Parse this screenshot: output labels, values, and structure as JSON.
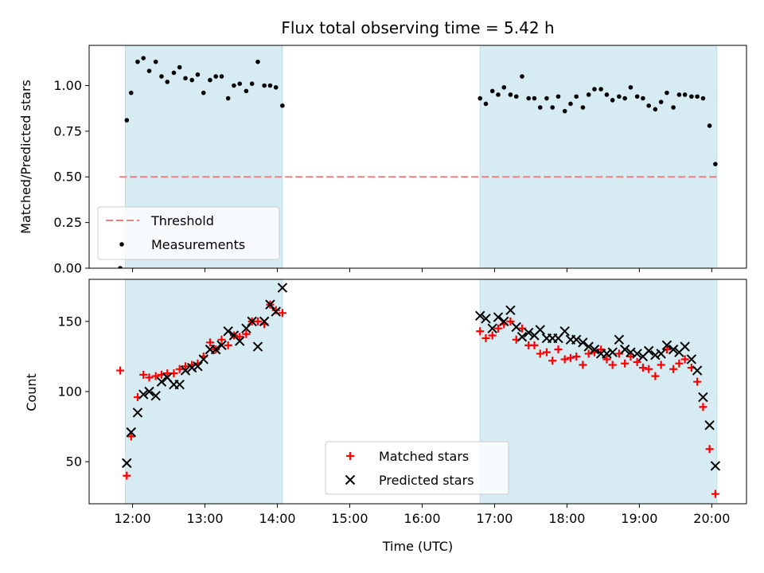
{
  "chart_data": [
    {
      "type": "scatter",
      "title": "Flux total observing time = 5.42 h",
      "xlabel": "",
      "ylabel": "Matched/Predicted stars",
      "xlim": [
        11.4,
        20.48
      ],
      "ylim": [
        0,
        1.22
      ],
      "yticks": [
        0,
        0.25,
        0.5,
        0.75,
        1.0
      ],
      "ytick_labels": [
        "0.00",
        "0.25",
        "0.50",
        "0.75",
        "1.00"
      ],
      "grid": false,
      "shaded_intervals": [
        [
          11.9,
          14.07
        ],
        [
          16.8,
          20.07
        ]
      ],
      "shade_color": "#add8e6",
      "threshold": {
        "name": "Threshold",
        "y": 0.5,
        "x": [
          11.82,
          20.07
        ],
        "color": "#f08080",
        "style": "dashed"
      },
      "legend_position": "lower-left",
      "series": [
        {
          "name": "Measurements",
          "marker": "dot",
          "color": "#000000",
          "points": [
            [
              11.83,
              0.0
            ],
            [
              11.92,
              0.81
            ],
            [
              11.98,
              0.96
            ],
            [
              12.07,
              1.13
            ],
            [
              12.15,
              1.15
            ],
            [
              12.23,
              1.08
            ],
            [
              12.32,
              1.13
            ],
            [
              12.4,
              1.05
            ],
            [
              12.48,
              1.02
            ],
            [
              12.57,
              1.07
            ],
            [
              12.65,
              1.1
            ],
            [
              12.73,
              1.04
            ],
            [
              12.82,
              1.03
            ],
            [
              12.9,
              1.06
            ],
            [
              12.98,
              0.96
            ],
            [
              13.07,
              1.03
            ],
            [
              13.15,
              1.05
            ],
            [
              13.23,
              1.05
            ],
            [
              13.32,
              0.93
            ],
            [
              13.4,
              1.0
            ],
            [
              13.48,
              1.01
            ],
            [
              13.57,
              0.97
            ],
            [
              13.65,
              1.01
            ],
            [
              13.73,
              1.13
            ],
            [
              13.82,
              1.0
            ],
            [
              13.9,
              1.0
            ],
            [
              13.98,
              0.99
            ],
            [
              14.07,
              0.89
            ],
            [
              16.8,
              0.93
            ],
            [
              16.88,
              0.9
            ],
            [
              16.97,
              0.97
            ],
            [
              17.05,
              0.95
            ],
            [
              17.13,
              0.99
            ],
            [
              17.22,
              0.95
            ],
            [
              17.3,
              0.94
            ],
            [
              17.38,
              1.05
            ],
            [
              17.47,
              0.93
            ],
            [
              17.55,
              0.93
            ],
            [
              17.63,
              0.88
            ],
            [
              17.72,
              0.93
            ],
            [
              17.8,
              0.88
            ],
            [
              17.88,
              0.94
            ],
            [
              17.97,
              0.86
            ],
            [
              18.05,
              0.9
            ],
            [
              18.13,
              0.94
            ],
            [
              18.22,
              0.88
            ],
            [
              18.3,
              0.95
            ],
            [
              18.38,
              0.98
            ],
            [
              18.47,
              0.98
            ],
            [
              18.55,
              0.95
            ],
            [
              18.63,
              0.92
            ],
            [
              18.72,
              0.94
            ],
            [
              18.8,
              0.93
            ],
            [
              18.88,
              0.99
            ],
            [
              18.97,
              0.94
            ],
            [
              19.05,
              0.93
            ],
            [
              19.13,
              0.89
            ],
            [
              19.22,
              0.87
            ],
            [
              19.3,
              0.91
            ],
            [
              19.38,
              0.96
            ],
            [
              19.47,
              0.88
            ],
            [
              19.55,
              0.95
            ],
            [
              19.63,
              0.95
            ],
            [
              19.72,
              0.94
            ],
            [
              19.8,
              0.94
            ],
            [
              19.88,
              0.93
            ],
            [
              19.97,
              0.78
            ],
            [
              20.05,
              0.57
            ]
          ]
        }
      ]
    },
    {
      "type": "scatter",
      "title": "",
      "xlabel": "Time (UTC)",
      "ylabel": "Count",
      "xlim": [
        11.4,
        20.48
      ],
      "ylim": [
        20,
        180
      ],
      "xticks": [
        12,
        13,
        14,
        15,
        16,
        17,
        18,
        19,
        20
      ],
      "xtick_labels": [
        "12:00",
        "13:00",
        "14:00",
        "15:00",
        "16:00",
        "17:00",
        "18:00",
        "19:00",
        "20:00"
      ],
      "yticks": [
        50,
        100,
        150
      ],
      "ytick_labels": [
        "50",
        "100",
        "150"
      ],
      "grid": false,
      "shaded_intervals": [
        [
          11.9,
          14.07
        ],
        [
          16.8,
          20.07
        ]
      ],
      "shade_color": "#add8e6",
      "legend_position": "lower-center",
      "series": [
        {
          "name": "Matched stars",
          "marker": "plus",
          "color": "#ff0000",
          "points": [
            [
              11.83,
              115
            ],
            [
              11.92,
              40
            ],
            [
              11.98,
              68
            ],
            [
              12.07,
              96
            ],
            [
              12.15,
              112
            ],
            [
              12.23,
              110
            ],
            [
              12.32,
              111
            ],
            [
              12.4,
              112
            ],
            [
              12.48,
              113
            ],
            [
              12.57,
              113
            ],
            [
              12.65,
              116
            ],
            [
              12.73,
              118
            ],
            [
              12.82,
              119
            ],
            [
              12.9,
              120
            ],
            [
              12.98,
              125
            ],
            [
              13.07,
              135
            ],
            [
              13.15,
              130
            ],
            [
              13.23,
              137
            ],
            [
              13.32,
              133
            ],
            [
              13.4,
              140
            ],
            [
              13.48,
              139
            ],
            [
              13.57,
              141
            ],
            [
              13.65,
              150
            ],
            [
              13.73,
              150
            ],
            [
              13.82,
              148
            ],
            [
              13.9,
              162
            ],
            [
              13.98,
              158
            ],
            [
              14.07,
              156
            ],
            [
              16.8,
              143
            ],
            [
              16.88,
              138
            ],
            [
              16.97,
              140
            ],
            [
              17.05,
              145
            ],
            [
              17.13,
              148
            ],
            [
              17.22,
              150
            ],
            [
              17.3,
              137
            ],
            [
              17.38,
              145
            ],
            [
              17.47,
              133
            ],
            [
              17.55,
              133
            ],
            [
              17.63,
              127
            ],
            [
              17.72,
              128
            ],
            [
              17.8,
              122
            ],
            [
              17.88,
              130
            ],
            [
              17.97,
              123
            ],
            [
              18.05,
              124
            ],
            [
              18.13,
              125
            ],
            [
              18.22,
              119
            ],
            [
              18.3,
              127
            ],
            [
              18.38,
              128
            ],
            [
              18.47,
              130
            ],
            [
              18.55,
              123
            ],
            [
              18.63,
              119
            ],
            [
              18.72,
              127
            ],
            [
              18.8,
              120
            ],
            [
              18.88,
              125
            ],
            [
              18.97,
              121
            ],
            [
              19.05,
              117
            ],
            [
              19.13,
              116
            ],
            [
              19.22,
              111
            ],
            [
              19.3,
              119
            ],
            [
              19.38,
              130
            ],
            [
              19.47,
              116
            ],
            [
              19.55,
              120
            ],
            [
              19.63,
              123
            ],
            [
              19.72,
              117
            ],
            [
              19.8,
              107
            ],
            [
              19.88,
              89
            ],
            [
              19.97,
              59
            ],
            [
              20.05,
              27
            ]
          ]
        },
        {
          "name": "Predicted stars",
          "marker": "cross",
          "color": "#000000",
          "points": [
            [
              11.92,
              49
            ],
            [
              11.98,
              71
            ],
            [
              12.07,
              85
            ],
            [
              12.15,
              98
            ],
            [
              12.23,
              100
            ],
            [
              12.32,
              97
            ],
            [
              12.4,
              107
            ],
            [
              12.48,
              110
            ],
            [
              12.57,
              105
            ],
            [
              12.65,
              105
            ],
            [
              12.73,
              115
            ],
            [
              12.82,
              117
            ],
            [
              12.9,
              118
            ],
            [
              12.98,
              123
            ],
            [
              13.07,
              130
            ],
            [
              13.15,
              130
            ],
            [
              13.23,
              133
            ],
            [
              13.32,
              143
            ],
            [
              13.4,
              140
            ],
            [
              13.48,
              136
            ],
            [
              13.57,
              145
            ],
            [
              13.65,
              150
            ],
            [
              13.73,
              132
            ],
            [
              13.82,
              150
            ],
            [
              13.9,
              162
            ],
            [
              13.98,
              157
            ],
            [
              14.07,
              174
            ],
            [
              16.8,
              154
            ],
            [
              16.88,
              152
            ],
            [
              16.97,
              145
            ],
            [
              17.05,
              153
            ],
            [
              17.13,
              150
            ],
            [
              17.22,
              158
            ],
            [
              17.3,
              146
            ],
            [
              17.38,
              139
            ],
            [
              17.47,
              142
            ],
            [
              17.55,
              140
            ],
            [
              17.63,
              144
            ],
            [
              17.72,
              138
            ],
            [
              17.8,
              138
            ],
            [
              17.88,
              138
            ],
            [
              17.97,
              143
            ],
            [
              18.05,
              137
            ],
            [
              18.13,
              137
            ],
            [
              18.22,
              135
            ],
            [
              18.3,
              132
            ],
            [
              18.38,
              130
            ],
            [
              18.47,
              127
            ],
            [
              18.55,
              127
            ],
            [
              18.63,
              128
            ],
            [
              18.72,
              137
            ],
            [
              18.8,
              130
            ],
            [
              18.88,
              128
            ],
            [
              18.97,
              127
            ],
            [
              19.05,
              125
            ],
            [
              19.13,
              129
            ],
            [
              19.22,
              126
            ],
            [
              19.3,
              127
            ],
            [
              19.38,
              133
            ],
            [
              19.47,
              130
            ],
            [
              19.55,
              128
            ],
            [
              19.63,
              132
            ],
            [
              19.72,
              123
            ],
            [
              19.8,
              115
            ],
            [
              19.88,
              96
            ],
            [
              19.97,
              76
            ],
            [
              20.05,
              47
            ]
          ]
        }
      ]
    }
  ]
}
